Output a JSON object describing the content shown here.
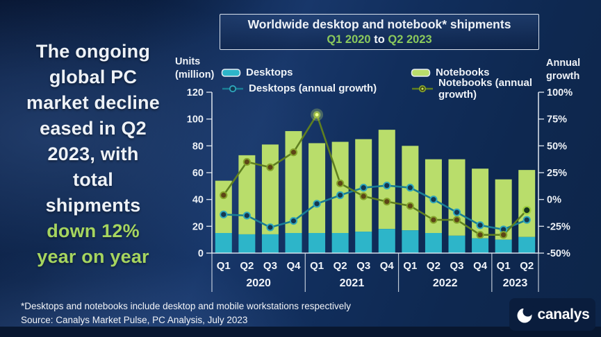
{
  "headline": {
    "lines": [
      "The ongoing",
      "global PC",
      "market decline",
      "eased in Q2",
      "2023, with",
      "total",
      "shipments",
      "down 12%",
      "year on year"
    ],
    "accent_color": "#a6d55f"
  },
  "title": {
    "line1": "Worldwide desktop and notebook* shipments",
    "range_start": "Q1 2020",
    "range_mid": " to ",
    "range_end": "Q2 2023",
    "accent_color": "#8bc95c"
  },
  "axis_titles": {
    "left_line1": "Units",
    "left_line2": "(million)",
    "right_line1": "Annual",
    "right_line2": "growth"
  },
  "legend": [
    {
      "label": "Desktops",
      "type": "bar",
      "color": "#2db5c9"
    },
    {
      "label": "Notebooks",
      "type": "bar",
      "color": "#b9dd6b"
    },
    {
      "label": "Desktops (annual growth)",
      "type": "line",
      "color": "#1a7e95"
    },
    {
      "label": "Notebooks (annual growth)",
      "type": "line",
      "color": "#5f7f20"
    }
  ],
  "chart_data": {
    "type": "bar+line",
    "title": "Worldwide desktop and notebook* shipments Q1 2020 to Q2 2023",
    "stacked": true,
    "grid": "off",
    "legend_position": "top",
    "quarters": [
      "Q1",
      "Q2",
      "Q3",
      "Q4",
      "Q1",
      "Q2",
      "Q3",
      "Q4",
      "Q1",
      "Q2",
      "Q3",
      "Q4",
      "Q1",
      "Q2"
    ],
    "years": [
      {
        "label": "2020",
        "quarters": 4
      },
      {
        "label": "2021",
        "quarters": 4
      },
      {
        "label": "2022",
        "quarters": 4
      },
      {
        "label": "2023",
        "quarters": 2
      }
    ],
    "bar_series": [
      {
        "name": "Desktops",
        "color": "#2db5c9",
        "values_millions": [
          15,
          14,
          14,
          15,
          15,
          15,
          16,
          18,
          17,
          15,
          13,
          11,
          10,
          12
        ]
      },
      {
        "name": "Notebooks",
        "color": "#b9dd6b",
        "values_millions": [
          39,
          59,
          67,
          76,
          67,
          68,
          69,
          74,
          63,
          55,
          57,
          52,
          45,
          50
        ]
      }
    ],
    "line_series": [
      {
        "name": "Desktops (annual growth)",
        "color": "#1a7e95",
        "marker_fill": "#143750",
        "marker_stroke": "#2fa7bd",
        "values_pct": [
          -14,
          -15,
          -26,
          -20,
          -4,
          4,
          11,
          13,
          11,
          0,
          -12,
          -24,
          -28,
          -19
        ]
      },
      {
        "name": "Notebooks (annual growth)",
        "color": "#5f7f20",
        "marker_fill": "#5d4516",
        "marker_stroke": "#85a42c",
        "values_pct": [
          4,
          35,
          30,
          44,
          79,
          15,
          3,
          -2,
          -6,
          -19,
          -19,
          -33,
          -33,
          -10
        ],
        "peak_index": 4
      }
    ],
    "left_axis": {
      "title": "Units (million)",
      "min": 0,
      "max": 120,
      "step": 20,
      "ticks": [
        120,
        100,
        80,
        60,
        40,
        20,
        0
      ]
    },
    "right_axis": {
      "title": "Annual growth",
      "min": -50,
      "max": 100,
      "step": 25,
      "ticks": [
        "100%",
        "75%",
        "50%",
        "25%",
        "0%",
        "-25%",
        "-50%"
      ]
    }
  },
  "footer": {
    "note": "*Desktops and notebooks include desktop and mobile workstations respectively",
    "source": "Source: Canalys Market Pulse, PC Analysis, July 2023",
    "logo_text": "canalys"
  }
}
